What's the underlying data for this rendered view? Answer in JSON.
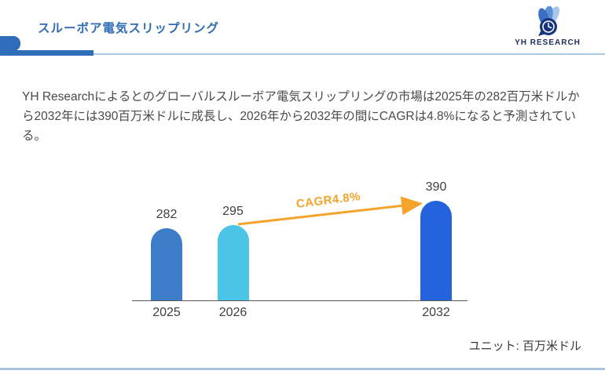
{
  "header": {
    "title": "スルーボア電気スリップリング",
    "brand": "YH RESEARCH"
  },
  "summary": {
    "text": "YH Researchによるとのグローバルスルーボア電気スリップリングの市場は2025年の282百万米ドルから2032年には390百万米ドルに成長し、2026年から2032年の間にCAGRは4.8%になると予測されている。"
  },
  "chart_data": {
    "type": "bar",
    "categories": [
      "2025",
      "2026",
      "2032"
    ],
    "values": [
      282,
      295,
      390
    ],
    "title": "",
    "xlabel": "",
    "ylabel": "",
    "unit": "百万米ドル",
    "annotation": "CAGR4.8%",
    "ylim": [
      0,
      390
    ],
    "grid": false,
    "legend": false,
    "bar_colors": [
      "#3D7DC8",
      "#4CC4E8",
      "#2563DD"
    ],
    "arrow_color": "#F5A32A",
    "axis_color": "#595959",
    "label_color": "#404040"
  },
  "footer": {
    "unit_label": "ユニット: 百万米ドル"
  },
  "colors": {
    "title_blue": "#2E6CB5",
    "header_accent_blue": "#2F6DB8",
    "header_rule_blue": "#A9C6E3",
    "brand_navy": "#1F2D60",
    "body_text_gray": "#4A4A4A",
    "footer_rule_blue": "#A9C4DF"
  }
}
